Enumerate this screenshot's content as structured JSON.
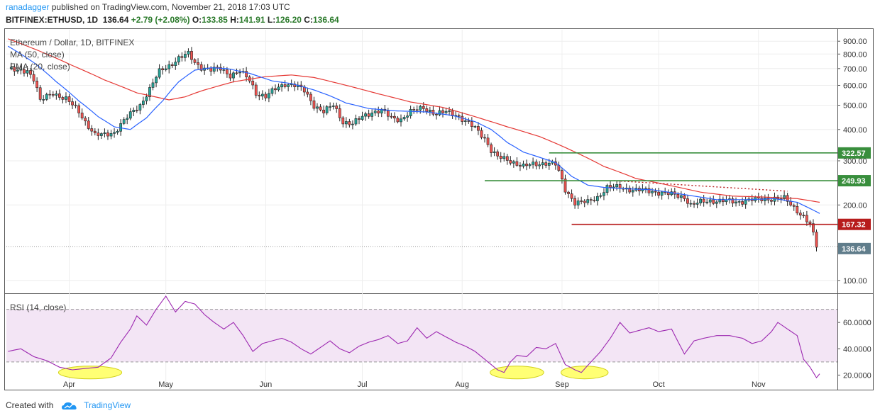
{
  "header": {
    "author": "ranadagger",
    "published": "published on TradingView.com, November 21, 2018 17:03 UTC",
    "symbol": "BITFINEX:ETHUSD, 1D",
    "last": "136.64",
    "change": "+2.79 (+2.08%)",
    "o_label": "O:",
    "o_value": "133.85",
    "h_label": "H:",
    "h_value": "141.91",
    "l_label": "L:",
    "l_value": "126.20",
    "c_label": "C:",
    "c_value": "136.64"
  },
  "footer": {
    "created_with": "Created with",
    "brand": "TradingView"
  },
  "colors": {
    "up": "#26a69a",
    "down": "#ef5350",
    "candle_outline": "#222222",
    "ma50": "#e53935",
    "ema20": "#2962ff",
    "green_level": "#388e3c",
    "red_level": "#b71c1c",
    "rsi": "#9c27b0",
    "rsi_band": "#f3e5f5",
    "highlight": "#ffff66",
    "price_badge": "#607d8b",
    "grid": "#eeeeee"
  },
  "chart_data": [
    {
      "type": "candlestick",
      "title": "Ethereum / Dollar, 1D, BITFINEX",
      "indicators": [
        "MA (50, close)",
        "EMA (20, close)"
      ],
      "y_scale": "log",
      "ylim": [
        90,
        1000
      ],
      "y_ticks": [
        "900.00",
        "800.00",
        "700.00",
        "600.00",
        "500.00",
        "400.00",
        "300.00",
        "200.00",
        "100.00"
      ],
      "y_tick_values": [
        900,
        800,
        700,
        600,
        500,
        400,
        300,
        200,
        100
      ],
      "x_ticks": [
        "Apr",
        "May",
        "Jun",
        "Jul",
        "Aug",
        "Sep",
        "Oct",
        "Nov"
      ],
      "x_tick_days": [
        19,
        49,
        80,
        110,
        141,
        172,
        202,
        233
      ],
      "days": 258,
      "anchors": [
        [
          0,
          700
        ],
        [
          3,
          680
        ],
        [
          6,
          690
        ],
        [
          8,
          640
        ],
        [
          10,
          520
        ],
        [
          14,
          560
        ],
        [
          18,
          530
        ],
        [
          22,
          470
        ],
        [
          24,
          430
        ],
        [
          27,
          380
        ],
        [
          30,
          380
        ],
        [
          33,
          390
        ],
        [
          35,
          420
        ],
        [
          38,
          460
        ],
        [
          41,
          500
        ],
        [
          44,
          580
        ],
        [
          47,
          680
        ],
        [
          50,
          720
        ],
        [
          53,
          770
        ],
        [
          56,
          800
        ],
        [
          58,
          740
        ],
        [
          60,
          710
        ],
        [
          63,
          690
        ],
        [
          66,
          700
        ],
        [
          69,
          660
        ],
        [
          72,
          680
        ],
        [
          75,
          630
        ],
        [
          77,
          560
        ],
        [
          80,
          540
        ],
        [
          83,
          580
        ],
        [
          86,
          610
        ],
        [
          89,
          600
        ],
        [
          92,
          570
        ],
        [
          95,
          500
        ],
        [
          98,
          470
        ],
        [
          101,
          500
        ],
        [
          104,
          430
        ],
        [
          107,
          420
        ],
        [
          110,
          450
        ],
        [
          113,
          470
        ],
        [
          116,
          475
        ],
        [
          119,
          445
        ],
        [
          122,
          440
        ],
        [
          125,
          470
        ],
        [
          129,
          490
        ],
        [
          133,
          460
        ],
        [
          136,
          470
        ],
        [
          139,
          460
        ],
        [
          142,
          430
        ],
        [
          145,
          405
        ],
        [
          148,
          370
        ],
        [
          150,
          330
        ],
        [
          152,
          310
        ],
        [
          156,
          300
        ],
        [
          160,
          285
        ],
        [
          163,
          290
        ],
        [
          167,
          295
        ],
        [
          170,
          290
        ],
        [
          173,
          230
        ],
        [
          176,
          205
        ],
        [
          180,
          205
        ],
        [
          183,
          215
        ],
        [
          186,
          235
        ],
        [
          190,
          235
        ],
        [
          194,
          230
        ],
        [
          198,
          228
        ],
        [
          202,
          225
        ],
        [
          206,
          220
        ],
        [
          210,
          215
        ],
        [
          212,
          200
        ],
        [
          215,
          205
        ],
        [
          218,
          208
        ],
        [
          222,
          208
        ],
        [
          226,
          205
        ],
        [
          230,
          210
        ],
        [
          234,
          210
        ],
        [
          238,
          213
        ],
        [
          241,
          212
        ],
        [
          244,
          195
        ],
        [
          247,
          180
        ],
        [
          249,
          167
        ],
        [
          251,
          136.64
        ]
      ],
      "ma50_anchors": [
        [
          0,
          920
        ],
        [
          10,
          820
        ],
        [
          20,
          720
        ],
        [
          30,
          630
        ],
        [
          40,
          560
        ],
        [
          50,
          525
        ],
        [
          55,
          540
        ],
        [
          60,
          570
        ],
        [
          70,
          620
        ],
        [
          80,
          650
        ],
        [
          88,
          660
        ],
        [
          95,
          645
        ],
        [
          105,
          600
        ],
        [
          115,
          555
        ],
        [
          125,
          515
        ],
        [
          135,
          490
        ],
        [
          145,
          450
        ],
        [
          155,
          410
        ],
        [
          165,
          375
        ],
        [
          175,
          330
        ],
        [
          185,
          285
        ],
        [
          195,
          255
        ],
        [
          205,
          240
        ],
        [
          215,
          225
        ],
        [
          225,
          217
        ],
        [
          235,
          215
        ],
        [
          245,
          212
        ],
        [
          252,
          205
        ]
      ],
      "ema20_anchors": [
        [
          0,
          860
        ],
        [
          8,
          740
        ],
        [
          15,
          620
        ],
        [
          22,
          520
        ],
        [
          28,
          450
        ],
        [
          33,
          410
        ],
        [
          38,
          400
        ],
        [
          43,
          445
        ],
        [
          48,
          520
        ],
        [
          53,
          620
        ],
        [
          58,
          690
        ],
        [
          63,
          705
        ],
        [
          68,
          700
        ],
        [
          75,
          670
        ],
        [
          82,
          625
        ],
        [
          88,
          610
        ],
        [
          95,
          575
        ],
        [
          100,
          545
        ],
        [
          105,
          510
        ],
        [
          112,
          485
        ],
        [
          120,
          475
        ],
        [
          130,
          470
        ],
        [
          138,
          455
        ],
        [
          145,
          430
        ],
        [
          150,
          400
        ],
        [
          155,
          355
        ],
        [
          160,
          325
        ],
        [
          165,
          310
        ],
        [
          170,
          295
        ],
        [
          175,
          260
        ],
        [
          180,
          240
        ],
        [
          185,
          235
        ],
        [
          192,
          232
        ],
        [
          200,
          230
        ],
        [
          210,
          220
        ],
        [
          220,
          210
        ],
        [
          230,
          210
        ],
        [
          238,
          212
        ],
        [
          245,
          205
        ],
        [
          252,
          185
        ]
      ],
      "levels": [
        {
          "label": "322.57",
          "value": 322.57,
          "color_key": "green_level",
          "from_day": 168
        },
        {
          "label": "249.93",
          "value": 249.93,
          "color_key": "green_level",
          "from_day": 148
        },
        {
          "label": "167.32",
          "value": 167.32,
          "color_key": "red_level",
          "from_day": 175
        }
      ],
      "dotted_trend": {
        "from_day": 188,
        "from_value": 250,
        "to_day": 242,
        "to_value": 227
      },
      "last_price": {
        "label": "136.64",
        "value": 136.64
      }
    },
    {
      "type": "line",
      "title": "RSI (14, close)",
      "ylim": [
        10,
        80
      ],
      "band": [
        30,
        70
      ],
      "y_ticks": [
        "60.0000",
        "40.0000",
        "20.0000"
      ],
      "y_tick_values": [
        60,
        40,
        20
      ],
      "anchors": [
        [
          0,
          38
        ],
        [
          4,
          40
        ],
        [
          8,
          34
        ],
        [
          12,
          31
        ],
        [
          16,
          26
        ],
        [
          20,
          24
        ],
        [
          24,
          25
        ],
        [
          28,
          26
        ],
        [
          32,
          33
        ],
        [
          35,
          45
        ],
        [
          38,
          55
        ],
        [
          40,
          65
        ],
        [
          43,
          58
        ],
        [
          46,
          70
        ],
        [
          49,
          80
        ],
        [
          52,
          68
        ],
        [
          55,
          76
        ],
        [
          58,
          74
        ],
        [
          61,
          66
        ],
        [
          64,
          60
        ],
        [
          67,
          55
        ],
        [
          70,
          60
        ],
        [
          73,
          50
        ],
        [
          76,
          38
        ],
        [
          79,
          44
        ],
        [
          82,
          46
        ],
        [
          85,
          48
        ],
        [
          88,
          45
        ],
        [
          91,
          40
        ],
        [
          94,
          36
        ],
        [
          97,
          41
        ],
        [
          100,
          46
        ],
        [
          103,
          40
        ],
        [
          106,
          37
        ],
        [
          109,
          42
        ],
        [
          112,
          45
        ],
        [
          115,
          47
        ],
        [
          118,
          50
        ],
        [
          121,
          44
        ],
        [
          124,
          46
        ],
        [
          127,
          56
        ],
        [
          130,
          48
        ],
        [
          133,
          53
        ],
        [
          136,
          49
        ],
        [
          139,
          45
        ],
        [
          142,
          42
        ],
        [
          145,
          38
        ],
        [
          148,
          32
        ],
        [
          150,
          28
        ],
        [
          152,
          24
        ],
        [
          154,
          22
        ],
        [
          156,
          30
        ],
        [
          158,
          35
        ],
        [
          161,
          34
        ],
        [
          164,
          41
        ],
        [
          167,
          40
        ],
        [
          170,
          44
        ],
        [
          173,
          28
        ],
        [
          176,
          24
        ],
        [
          178,
          22
        ],
        [
          181,
          30
        ],
        [
          184,
          38
        ],
        [
          187,
          48
        ],
        [
          190,
          60
        ],
        [
          193,
          52
        ],
        [
          196,
          54
        ],
        [
          199,
          56
        ],
        [
          202,
          53
        ],
        [
          206,
          55
        ],
        [
          210,
          36
        ],
        [
          213,
          46
        ],
        [
          216,
          48
        ],
        [
          220,
          50
        ],
        [
          224,
          50
        ],
        [
          228,
          48
        ],
        [
          231,
          44
        ],
        [
          234,
          46
        ],
        [
          237,
          53
        ],
        [
          239,
          60
        ],
        [
          242,
          55
        ],
        [
          245,
          50
        ],
        [
          247,
          32
        ],
        [
          249,
          26
        ],
        [
          251,
          18
        ],
        [
          252,
          21
        ]
      ],
      "highlights": [
        {
          "from_day": 17,
          "to_day": 34
        },
        {
          "from_day": 151,
          "to_day": 165
        },
        {
          "from_day": 173,
          "to_day": 185
        }
      ]
    }
  ]
}
